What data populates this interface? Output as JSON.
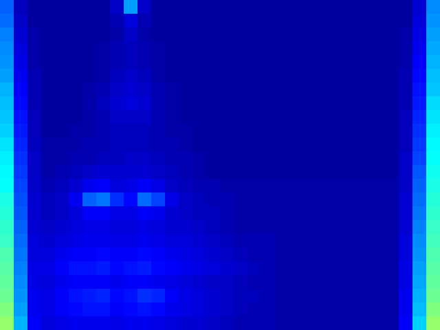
{
  "chart_data": {
    "type": "heatmap",
    "tick_labels": false,
    "zlim": [
      0,
      1
    ],
    "cells": [
      [
        0.22,
        0.06,
        0.03,
        0.03,
        0.03,
        0.03,
        0.03,
        0.03,
        0.07,
        0.28,
        0.07,
        0.03,
        0.03,
        0.03,
        0.03,
        0.03,
        0.03,
        0.03,
        0.03,
        0.03,
        0.03,
        0.03,
        0.03,
        0.03,
        0.03,
        0.03,
        0.03,
        0.03,
        0.03,
        0.03,
        0.08,
        0.26
      ],
      [
        0.23,
        0.07,
        0.03,
        0.03,
        0.03,
        0.03,
        0.03,
        0.03,
        0.05,
        0.09,
        0.05,
        0.03,
        0.03,
        0.03,
        0.03,
        0.03,
        0.03,
        0.03,
        0.03,
        0.03,
        0.03,
        0.03,
        0.03,
        0.03,
        0.03,
        0.03,
        0.03,
        0.03,
        0.03,
        0.03,
        0.09,
        0.27
      ],
      [
        0.25,
        0.08,
        0.04,
        0.03,
        0.03,
        0.03,
        0.03,
        0.03,
        0.04,
        0.07,
        0.04,
        0.03,
        0.03,
        0.03,
        0.03,
        0.03,
        0.03,
        0.03,
        0.03,
        0.03,
        0.03,
        0.03,
        0.03,
        0.03,
        0.03,
        0.03,
        0.03,
        0.03,
        0.03,
        0.04,
        0.1,
        0.28
      ],
      [
        0.26,
        0.09,
        0.04,
        0.03,
        0.03,
        0.03,
        0.03,
        0.04,
        0.05,
        0.06,
        0.05,
        0.04,
        0.03,
        0.03,
        0.03,
        0.03,
        0.03,
        0.03,
        0.03,
        0.03,
        0.03,
        0.03,
        0.03,
        0.03,
        0.03,
        0.03,
        0.03,
        0.03,
        0.03,
        0.04,
        0.11,
        0.29
      ],
      [
        0.27,
        0.1,
        0.04,
        0.03,
        0.03,
        0.03,
        0.03,
        0.04,
        0.05,
        0.06,
        0.05,
        0.04,
        0.03,
        0.03,
        0.03,
        0.03,
        0.03,
        0.03,
        0.03,
        0.03,
        0.03,
        0.03,
        0.03,
        0.03,
        0.03,
        0.03,
        0.03,
        0.03,
        0.03,
        0.04,
        0.12,
        0.3
      ],
      [
        0.28,
        0.11,
        0.05,
        0.03,
        0.03,
        0.03,
        0.03,
        0.04,
        0.06,
        0.07,
        0.06,
        0.04,
        0.03,
        0.03,
        0.03,
        0.03,
        0.03,
        0.03,
        0.03,
        0.03,
        0.03,
        0.03,
        0.03,
        0.03,
        0.03,
        0.03,
        0.03,
        0.03,
        0.03,
        0.05,
        0.13,
        0.31
      ],
      [
        0.3,
        0.12,
        0.05,
        0.03,
        0.03,
        0.03,
        0.04,
        0.05,
        0.07,
        0.08,
        0.07,
        0.05,
        0.04,
        0.03,
        0.03,
        0.03,
        0.03,
        0.03,
        0.03,
        0.03,
        0.03,
        0.03,
        0.03,
        0.03,
        0.03,
        0.03,
        0.03,
        0.03,
        0.03,
        0.05,
        0.14,
        0.32
      ],
      [
        0.31,
        0.13,
        0.05,
        0.03,
        0.03,
        0.03,
        0.04,
        0.06,
        0.08,
        0.09,
        0.08,
        0.05,
        0.04,
        0.03,
        0.03,
        0.03,
        0.03,
        0.03,
        0.03,
        0.03,
        0.03,
        0.03,
        0.03,
        0.03,
        0.03,
        0.03,
        0.03,
        0.03,
        0.03,
        0.05,
        0.15,
        0.34
      ],
      [
        0.32,
        0.14,
        0.06,
        0.03,
        0.03,
        0.03,
        0.04,
        0.05,
        0.07,
        0.07,
        0.07,
        0.05,
        0.04,
        0.03,
        0.03,
        0.03,
        0.03,
        0.03,
        0.03,
        0.03,
        0.03,
        0.03,
        0.03,
        0.03,
        0.03,
        0.03,
        0.03,
        0.03,
        0.03,
        0.06,
        0.16,
        0.35
      ],
      [
        0.33,
        0.15,
        0.06,
        0.03,
        0.03,
        0.04,
        0.04,
        0.05,
        0.06,
        0.06,
        0.06,
        0.05,
        0.04,
        0.04,
        0.03,
        0.03,
        0.03,
        0.03,
        0.03,
        0.03,
        0.03,
        0.03,
        0.03,
        0.03,
        0.03,
        0.03,
        0.03,
        0.03,
        0.03,
        0.06,
        0.17,
        0.36
      ],
      [
        0.35,
        0.16,
        0.06,
        0.04,
        0.04,
        0.04,
        0.05,
        0.05,
        0.06,
        0.06,
        0.06,
        0.05,
        0.05,
        0.04,
        0.03,
        0.03,
        0.03,
        0.03,
        0.03,
        0.03,
        0.03,
        0.03,
        0.03,
        0.03,
        0.03,
        0.03,
        0.03,
        0.03,
        0.03,
        0.06,
        0.18,
        0.37
      ],
      [
        0.36,
        0.17,
        0.07,
        0.04,
        0.04,
        0.05,
        0.05,
        0.06,
        0.06,
        0.07,
        0.07,
        0.06,
        0.05,
        0.05,
        0.04,
        0.03,
        0.03,
        0.03,
        0.03,
        0.03,
        0.03,
        0.03,
        0.03,
        0.03,
        0.03,
        0.03,
        0.03,
        0.03,
        0.03,
        0.07,
        0.19,
        0.38
      ],
      [
        0.37,
        0.18,
        0.07,
        0.04,
        0.05,
        0.06,
        0.07,
        0.08,
        0.08,
        0.08,
        0.08,
        0.07,
        0.06,
        0.05,
        0.04,
        0.03,
        0.03,
        0.03,
        0.03,
        0.03,
        0.03,
        0.03,
        0.03,
        0.03,
        0.03,
        0.03,
        0.03,
        0.03,
        0.03,
        0.07,
        0.21,
        0.39
      ],
      [
        0.38,
        0.19,
        0.07,
        0.05,
        0.06,
        0.08,
        0.11,
        0.12,
        0.09,
        0.1,
        0.12,
        0.1,
        0.07,
        0.06,
        0.05,
        0.05,
        0.04,
        0.04,
        0.04,
        0.04,
        0.04,
        0.04,
        0.04,
        0.04,
        0.04,
        0.04,
        0.04,
        0.04,
        0.04,
        0.07,
        0.22,
        0.4
      ],
      [
        0.4,
        0.2,
        0.08,
        0.06,
        0.07,
        0.11,
        0.22,
        0.24,
        0.17,
        0.13,
        0.23,
        0.19,
        0.1,
        0.07,
        0.06,
        0.05,
        0.05,
        0.04,
        0.04,
        0.04,
        0.04,
        0.04,
        0.04,
        0.04,
        0.04,
        0.04,
        0.04,
        0.04,
        0.04,
        0.08,
        0.23,
        0.41
      ],
      [
        0.41,
        0.21,
        0.08,
        0.06,
        0.07,
        0.09,
        0.12,
        0.12,
        0.1,
        0.1,
        0.12,
        0.11,
        0.08,
        0.07,
        0.06,
        0.06,
        0.05,
        0.04,
        0.04,
        0.04,
        0.04,
        0.04,
        0.04,
        0.04,
        0.04,
        0.04,
        0.04,
        0.04,
        0.04,
        0.08,
        0.24,
        0.42
      ],
      [
        0.42,
        0.22,
        0.08,
        0.07,
        0.08,
        0.09,
        0.1,
        0.1,
        0.09,
        0.09,
        0.1,
        0.09,
        0.08,
        0.08,
        0.07,
        0.06,
        0.05,
        0.04,
        0.04,
        0.04,
        0.04,
        0.04,
        0.04,
        0.04,
        0.04,
        0.04,
        0.04,
        0.04,
        0.04,
        0.08,
        0.25,
        0.43
      ],
      [
        0.43,
        0.23,
        0.09,
        0.08,
        0.09,
        0.1,
        0.11,
        0.11,
        0.1,
        0.1,
        0.11,
        0.1,
        0.09,
        0.09,
        0.08,
        0.07,
        0.06,
        0.05,
        0.05,
        0.05,
        0.04,
        0.04,
        0.04,
        0.04,
        0.04,
        0.04,
        0.04,
        0.04,
        0.04,
        0.09,
        0.26,
        0.44
      ],
      [
        0.45,
        0.24,
        0.09,
        0.09,
        0.11,
        0.12,
        0.12,
        0.13,
        0.12,
        0.12,
        0.13,
        0.12,
        0.11,
        0.1,
        0.09,
        0.08,
        0.07,
        0.06,
        0.05,
        0.05,
        0.04,
        0.04,
        0.04,
        0.04,
        0.04,
        0.04,
        0.04,
        0.04,
        0.04,
        0.09,
        0.27,
        0.45
      ],
      [
        0.46,
        0.25,
        0.1,
        0.1,
        0.12,
        0.14,
        0.14,
        0.15,
        0.13,
        0.14,
        0.15,
        0.13,
        0.12,
        0.11,
        0.1,
        0.09,
        0.08,
        0.07,
        0.06,
        0.05,
        0.04,
        0.04,
        0.04,
        0.04,
        0.04,
        0.04,
        0.04,
        0.04,
        0.04,
        0.1,
        0.28,
        0.46
      ],
      [
        0.47,
        0.26,
        0.1,
        0.09,
        0.11,
        0.12,
        0.12,
        0.12,
        0.11,
        0.12,
        0.12,
        0.11,
        0.1,
        0.09,
        0.08,
        0.07,
        0.07,
        0.06,
        0.05,
        0.05,
        0.04,
        0.04,
        0.04,
        0.04,
        0.04,
        0.04,
        0.04,
        0.04,
        0.04,
        0.1,
        0.29,
        0.47
      ],
      [
        0.48,
        0.27,
        0.11,
        0.1,
        0.12,
        0.14,
        0.15,
        0.16,
        0.13,
        0.14,
        0.17,
        0.16,
        0.12,
        0.1,
        0.09,
        0.08,
        0.07,
        0.06,
        0.06,
        0.05,
        0.04,
        0.04,
        0.04,
        0.04,
        0.04,
        0.04,
        0.04,
        0.04,
        0.04,
        0.11,
        0.3,
        0.48
      ],
      [
        0.5,
        0.28,
        0.11,
        0.1,
        0.12,
        0.13,
        0.14,
        0.14,
        0.12,
        0.13,
        0.14,
        0.13,
        0.11,
        0.1,
        0.09,
        0.08,
        0.07,
        0.06,
        0.05,
        0.05,
        0.04,
        0.04,
        0.04,
        0.04,
        0.04,
        0.04,
        0.04,
        0.04,
        0.04,
        0.11,
        0.31,
        0.5
      ],
      [
        0.52,
        0.3,
        0.12,
        0.09,
        0.1,
        0.11,
        0.11,
        0.11,
        0.1,
        0.11,
        0.11,
        0.1,
        0.09,
        0.08,
        0.08,
        0.07,
        0.06,
        0.05,
        0.05,
        0.05,
        0.04,
        0.04,
        0.04,
        0.04,
        0.04,
        0.04,
        0.04,
        0.04,
        0.04,
        0.12,
        0.33,
        0.52
      ]
    ]
  }
}
